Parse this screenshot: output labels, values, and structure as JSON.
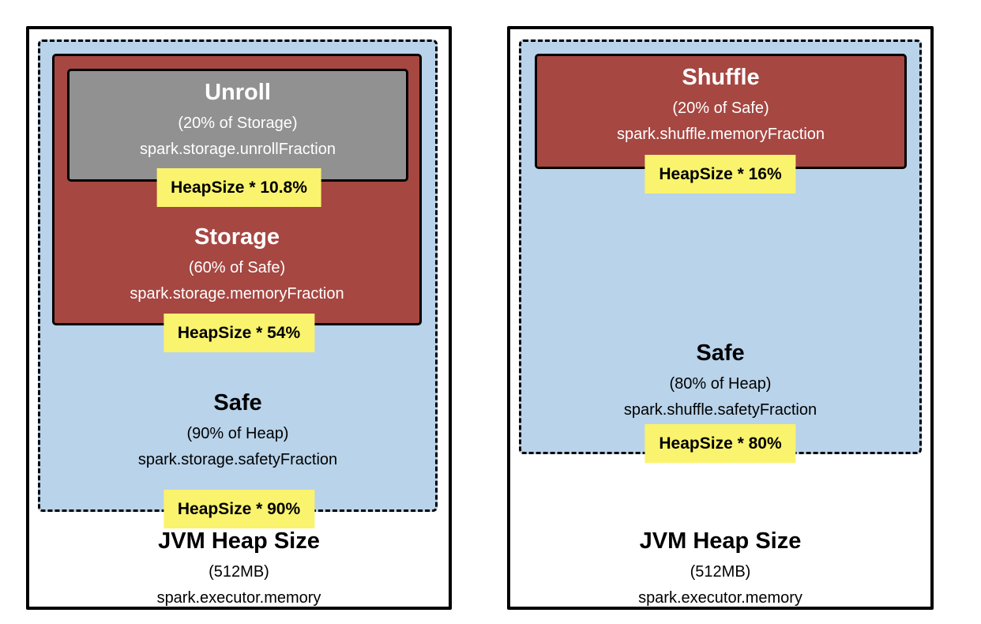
{
  "colors": {
    "region_red": "#A64742",
    "safe_blue": "#B8D3EA",
    "unroll_gray": "#919191",
    "label_yellow": "#FAF36E",
    "border_black": "#000000",
    "text_on_dark": "#FFFFFF",
    "text_on_light": "#000000"
  },
  "panels": [
    {
      "name": "storage-memory",
      "jvm": {
        "title": "JVM Heap Size",
        "size": "(512MB)",
        "property": "spark.executor.memory"
      },
      "safe": {
        "title": "Safe",
        "fraction": "(90% of Heap)",
        "property": "spark.storage.safetyFraction",
        "label": "HeapSize * 90%"
      },
      "region": {
        "title": "Storage",
        "fraction": "(60% of Safe)",
        "property": "spark.storage.memoryFraction",
        "label": "HeapSize * 54%"
      },
      "unroll": {
        "title": "Unroll",
        "fraction": "(20% of Storage)",
        "property": "spark.storage.unrollFraction",
        "label": "HeapSize * 10.8%"
      }
    },
    {
      "name": "shuffle-memory",
      "jvm": {
        "title": "JVM Heap Size",
        "size": "(512MB)",
        "property": "spark.executor.memory"
      },
      "safe": {
        "title": "Safe",
        "fraction": "(80% of Heap)",
        "property": "spark.shuffle.safetyFraction",
        "label": "HeapSize * 80%"
      },
      "region": {
        "title": "Shuffle",
        "fraction": "(20% of Safe)",
        "property": "spark.shuffle.memoryFraction",
        "label": "HeapSize * 16%"
      }
    }
  ]
}
